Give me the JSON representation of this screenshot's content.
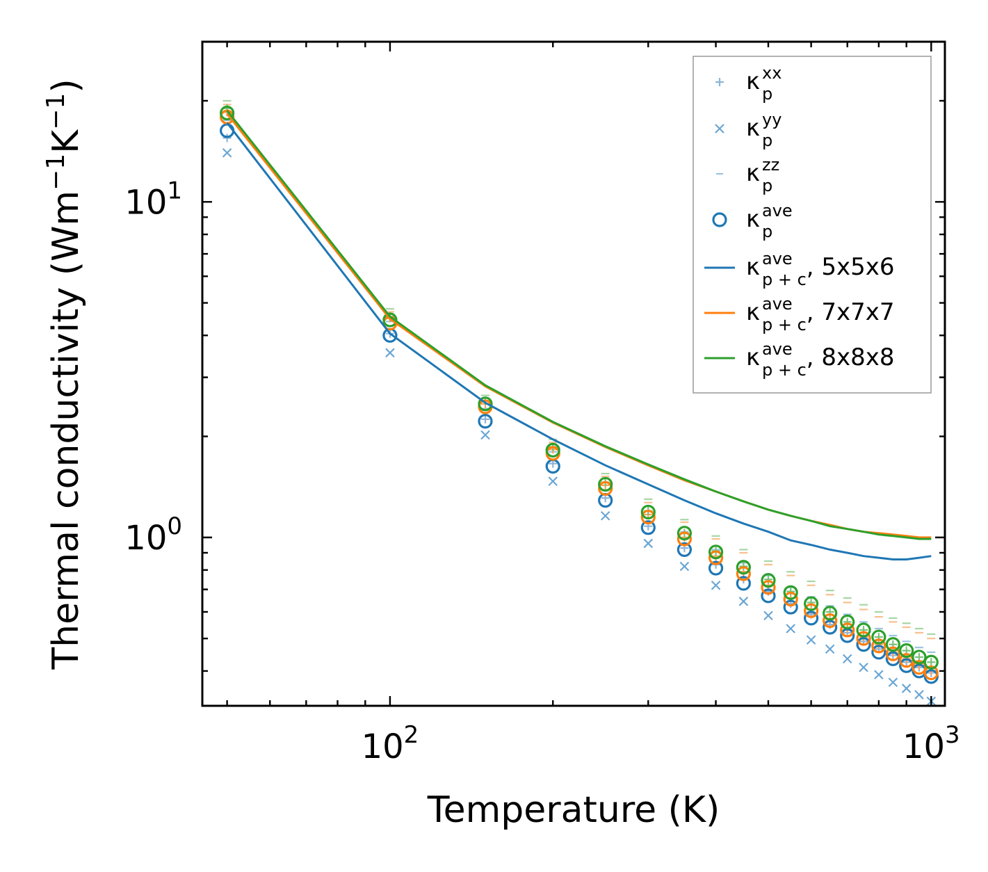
{
  "chart_data": {
    "type": "scatter",
    "xscale": "log",
    "yscale": "log",
    "xlim": [
      45,
      1060
    ],
    "ylim": [
      0.315,
      30
    ],
    "xlabel": "Temperature (K)",
    "ylabel": "Thermal conductivity (Wm",
    "ylabel_sup1": "−1",
    "ylabel_mid": "K",
    "ylabel_sup2": "−1",
    "ylabel_end": ")",
    "x_ticks": [
      {
        "base": "10",
        "exp": "2",
        "value": 100
      },
      {
        "base": "10",
        "exp": "3",
        "value": 1000
      }
    ],
    "y_ticks": [
      {
        "base": "10",
        "exp": "1",
        "value": 10
      },
      {
        "base": "10",
        "exp": "0",
        "value": 1
      }
    ],
    "temperatures": [
      50,
      100,
      150,
      200,
      250,
      300,
      350,
      400,
      450,
      500,
      550,
      600,
      650,
      700,
      750,
      800,
      850,
      900,
      950,
      1000
    ],
    "point_series": [
      {
        "name": "κp^xx",
        "marker": "plus",
        "set": "5x5x6",
        "color": "#8db5d8",
        "values": [
          15.5,
          4.05,
          2.25,
          1.66,
          1.31,
          1.08,
          0.93,
          0.83,
          0.75,
          0.69,
          0.635,
          0.59,
          0.55,
          0.52,
          0.49,
          0.465,
          0.445,
          0.425,
          0.41,
          0.395
        ]
      },
      {
        "name": "κp^yy",
        "marker": "cross",
        "set": "5x5x6",
        "color": "#6aa6d4",
        "values": [
          14.0,
          3.55,
          2.02,
          1.47,
          1.16,
          0.96,
          0.82,
          0.72,
          0.645,
          0.585,
          0.535,
          0.495,
          0.465,
          0.435,
          0.41,
          0.39,
          0.37,
          0.355,
          0.34,
          0.325
        ]
      },
      {
        "name": "κp^zz",
        "marker": "dash",
        "set": "5x5x6",
        "color": "#9cc3e2",
        "values": [
          17.5,
          4.4,
          2.42,
          1.8,
          1.43,
          1.2,
          1.04,
          0.92,
          0.84,
          0.77,
          0.71,
          0.665,
          0.625,
          0.59,
          0.56,
          0.535,
          0.51,
          0.49,
          0.47,
          0.455
        ]
      },
      {
        "name": "κp^xx",
        "marker": "plus",
        "set": "7x7x7",
        "color": "#f5a35a",
        "values": [
          18.5,
          4.5,
          2.5,
          1.83,
          1.43,
          1.17,
          1.0,
          0.88,
          0.79,
          0.72,
          0.66,
          0.61,
          0.57,
          0.535,
          0.505,
          0.48,
          0.455,
          0.435,
          0.415,
          0.4
        ]
      },
      {
        "name": "κp^zz",
        "marker": "dash",
        "set": "7x7x7",
        "color": "#f8c08e",
        "values": [
          19.5,
          4.7,
          2.6,
          1.92,
          1.52,
          1.27,
          1.11,
          0.99,
          0.9,
          0.83,
          0.77,
          0.72,
          0.675,
          0.64,
          0.61,
          0.58,
          0.56,
          0.54,
          0.52,
          0.5
        ]
      },
      {
        "name": "κp^xx",
        "marker": "plus",
        "set": "8x8x8",
        "color": "#7cc17c",
        "values": [
          19.0,
          4.55,
          2.55,
          1.86,
          1.46,
          1.2,
          1.03,
          0.91,
          0.82,
          0.75,
          0.69,
          0.64,
          0.6,
          0.56,
          0.53,
          0.505,
          0.48,
          0.46,
          0.44,
          0.425
        ]
      },
      {
        "name": "κp^zz",
        "marker": "dash",
        "set": "8x8x8",
        "color": "#a6d6a6",
        "values": [
          20.0,
          4.8,
          2.65,
          1.96,
          1.55,
          1.3,
          1.13,
          1.01,
          0.92,
          0.85,
          0.79,
          0.74,
          0.695,
          0.66,
          0.63,
          0.6,
          0.575,
          0.555,
          0.535,
          0.515
        ]
      }
    ],
    "average_series": [
      {
        "name": "κp^ave",
        "set": "5x5x6",
        "color": "#1f77b4",
        "values": [
          16.3,
          4.0,
          2.22,
          1.63,
          1.29,
          1.07,
          0.92,
          0.81,
          0.73,
          0.67,
          0.62,
          0.575,
          0.54,
          0.51,
          0.48,
          0.455,
          0.435,
          0.415,
          0.4,
          0.385
        ]
      },
      {
        "name": "κp^ave",
        "set": "7x7x7",
        "color": "#ff7f0e",
        "values": [
          17.9,
          4.35,
          2.45,
          1.78,
          1.4,
          1.15,
          0.99,
          0.87,
          0.78,
          0.71,
          0.655,
          0.605,
          0.565,
          0.53,
          0.5,
          0.475,
          0.45,
          0.43,
          0.41,
          0.395
        ]
      },
      {
        "name": "κp^ave",
        "set": "8x8x8",
        "color": "#2ca02c",
        "values": [
          18.4,
          4.45,
          2.5,
          1.82,
          1.44,
          1.19,
          1.03,
          0.905,
          0.815,
          0.745,
          0.685,
          0.635,
          0.595,
          0.56,
          0.53,
          0.505,
          0.48,
          0.46,
          0.44,
          0.425
        ]
      }
    ],
    "line_series": [
      {
        "name": "κp+c^ave, 5x5x6",
        "color": "#1f77b4",
        "values": [
          17.2,
          4.05,
          2.52,
          1.96,
          1.64,
          1.44,
          1.29,
          1.18,
          1.1,
          1.04,
          0.98,
          0.95,
          0.92,
          0.9,
          0.88,
          0.87,
          0.86,
          0.86,
          0.87,
          0.88
        ]
      },
      {
        "name": "κp+c^ave, 7x7x7",
        "color": "#ff7f0e",
        "values": [
          18.3,
          4.48,
          2.82,
          2.2,
          1.86,
          1.64,
          1.48,
          1.37,
          1.28,
          1.21,
          1.16,
          1.12,
          1.09,
          1.06,
          1.04,
          1.03,
          1.02,
          1.01,
          1.0,
          1.0
        ]
      },
      {
        "name": "κp+c^ave, 8x8x8",
        "color": "#2ca02c",
        "values": [
          18.7,
          4.55,
          2.84,
          2.21,
          1.87,
          1.65,
          1.49,
          1.37,
          1.28,
          1.21,
          1.16,
          1.12,
          1.08,
          1.06,
          1.04,
          1.02,
          1.01,
          1.0,
          0.99,
          0.99
        ]
      }
    ],
    "legend": {
      "placement": "upper right",
      "entries": [
        {
          "symbol": "+",
          "color": "#8db5d8",
          "base": "κ",
          "sub": "p",
          "sup": "xx",
          "suffix": ""
        },
        {
          "symbol": "×",
          "color": "#6aa6d4",
          "base": "κ",
          "sub": "p",
          "sup": "yy",
          "suffix": ""
        },
        {
          "symbol": "–",
          "color": "#9cc3e2",
          "base": "κ",
          "sub": "p",
          "sup": "zz",
          "suffix": ""
        },
        {
          "symbol": "o",
          "color": "#1f77b4",
          "base": "κ",
          "sub": "p",
          "sup": "ave",
          "suffix": ""
        },
        {
          "symbol": "line",
          "color": "#1f77b4",
          "base": "κ",
          "sub": "p + c",
          "sup": "ave",
          "suffix": ", 5x5x6"
        },
        {
          "symbol": "line",
          "color": "#ff7f0e",
          "base": "κ",
          "sub": "p + c",
          "sup": "ave",
          "suffix": ", 7x7x7"
        },
        {
          "symbol": "line",
          "color": "#2ca02c",
          "base": "κ",
          "sub": "p + c",
          "sup": "ave",
          "suffix": ", 8x8x8"
        }
      ]
    }
  }
}
